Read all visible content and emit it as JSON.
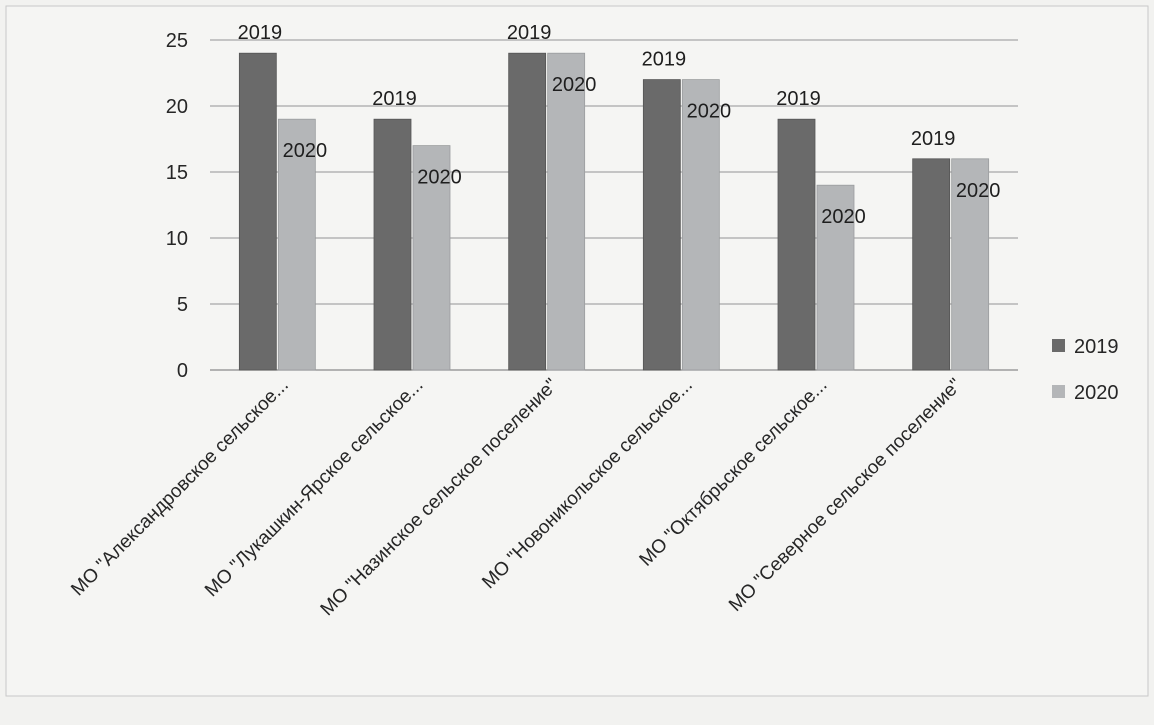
{
  "chart_data": {
    "type": "bar",
    "title": "",
    "xlabel": "",
    "ylabel": "",
    "ylim": [
      0,
      25
    ],
    "yticks": [
      0,
      5,
      10,
      15,
      20,
      25
    ],
    "grid": true,
    "legend_position": "right",
    "categories": [
      "МО \"Александровское сельское...",
      "МО \"Лукашкин-Ярское сельское...",
      "МО \"Назинское сельское поселение\"",
      "МО \"Новоникольское сельское...",
      "МО \"Октябрьское сельское...",
      "МО \"Северное сельское поселение\""
    ],
    "series": [
      {
        "name": "2019",
        "color": "#6a6a6a",
        "values": [
          24,
          19,
          24,
          22,
          19,
          16
        ]
      },
      {
        "name": "2020",
        "color": "#b4b6b8",
        "values": [
          19,
          17,
          24,
          22,
          14,
          16
        ]
      }
    ]
  }
}
